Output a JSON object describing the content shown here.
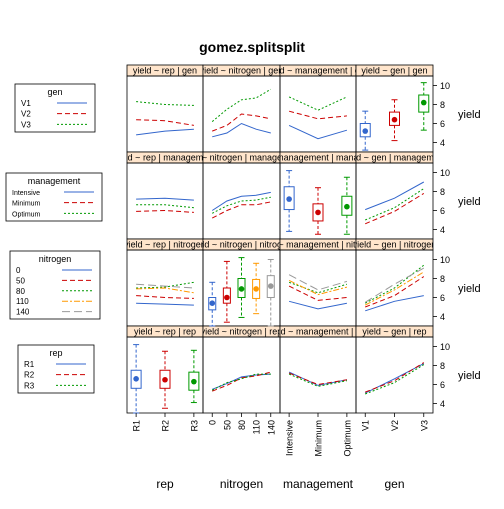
{
  "title": "gomez.splitsplit",
  "y_axis_label": "yield",
  "y_ticks": [
    "4",
    "6",
    "8",
    "10"
  ],
  "column_labels": [
    "rep",
    "nitrogen",
    "management",
    "gen"
  ],
  "row_factors": [
    "gen",
    "management",
    "nitrogen",
    "rep"
  ],
  "strip_titles": [
    [
      "yield ~ rep | gen",
      "yield ~ nitrogen | gen",
      "yield ~ management | gen",
      "yield ~ gen | gen"
    ],
    [
      "yield ~ rep | management",
      "yield ~ nitrogen | management",
      "yield ~ management | management",
      "yield ~ gen | management"
    ],
    [
      "yield ~ rep | nitrogen",
      "yield ~ nitrogen | nitrogen",
      "yield ~ management | nitrogen",
      "yield ~ gen | nitrogen"
    ],
    [
      "yield ~ rep | rep",
      "yield ~ nitrogen | rep",
      "yield ~ management | rep",
      "yield ~ gen | rep"
    ]
  ],
  "legends": [
    {
      "title": "gen",
      "items": [
        "V1",
        "V2",
        "V3"
      ]
    },
    {
      "title": "management",
      "items": [
        "Intensive",
        "Minimum",
        "Optimum"
      ]
    },
    {
      "title": "nitrogen",
      "items": [
        "0",
        "50",
        "80",
        "110",
        "140"
      ]
    },
    {
      "title": "rep",
      "items": [
        "R1",
        "R2",
        "R3"
      ]
    }
  ],
  "colors": {
    "series": [
      "#0080ff",
      "#ff00ff",
      "#006400",
      "#ff0000",
      "#ffa500"
    ],
    "lines": [
      "#3366cc",
      "#cc0000",
      "#009900",
      "#ff9900",
      "#999999"
    ],
    "strip": "#ffe5cc",
    "border": "#000000"
  },
  "chart_data": {
    "type": "line",
    "ylim": [
      3,
      11
    ],
    "x_levels": {
      "rep": [
        "R1",
        "R2",
        "R3"
      ],
      "nitrogen": [
        "0",
        "50",
        "80",
        "110",
        "140"
      ],
      "management": [
        "Intensive",
        "Minimum",
        "Optimum"
      ],
      "gen": [
        "V1",
        "V2",
        "V3"
      ]
    },
    "panels": [
      {
        "row": 0,
        "col": 0,
        "kind": "lines",
        "series": [
          [
            4.8,
            5.2,
            5.4
          ],
          [
            6.4,
            6.3,
            5.8
          ],
          [
            8.3,
            8.0,
            7.9
          ]
        ]
      },
      {
        "row": 0,
        "col": 1,
        "kind": "lines",
        "series": [
          [
            4.6,
            5.0,
            6.0,
            5.4,
            5.0
          ],
          [
            5.2,
            5.8,
            7.0,
            6.8,
            6.5
          ],
          [
            6.2,
            7.5,
            8.5,
            8.7,
            9.6
          ]
        ]
      },
      {
        "row": 0,
        "col": 2,
        "kind": "lines",
        "series": [
          [
            5.8,
            4.4,
            5.3
          ],
          [
            7.3,
            6.5,
            6.8
          ],
          [
            8.8,
            7.4,
            8.8
          ]
        ]
      },
      {
        "row": 0,
        "col": 3,
        "kind": "box",
        "boxes": [
          {
            "min": 3.2,
            "q1": 4.6,
            "med": 5.3,
            "q3": 6.0,
            "max": 7.3,
            "mean": 5.2
          },
          {
            "min": 4.2,
            "q1": 5.8,
            "med": 6.4,
            "q3": 7.2,
            "max": 8.5,
            "mean": 6.4
          },
          {
            "min": 5.3,
            "q1": 7.2,
            "med": 8.3,
            "q3": 9.0,
            "max": 10.3,
            "mean": 8.2
          }
        ]
      },
      {
        "row": 1,
        "col": 0,
        "kind": "lines",
        "series": [
          [
            7.2,
            7.3,
            7.1
          ],
          [
            5.9,
            6.0,
            5.8
          ],
          [
            6.6,
            6.6,
            6.3
          ]
        ]
      },
      {
        "row": 1,
        "col": 1,
        "kind": "lines",
        "series": [
          [
            6.0,
            7.0,
            7.5,
            7.6,
            7.9
          ],
          [
            5.2,
            6.0,
            6.6,
            6.6,
            6.9
          ],
          [
            5.7,
            6.5,
            7.0,
            7.1,
            7.4
          ]
        ]
      },
      {
        "row": 1,
        "col": 2,
        "kind": "box",
        "boxes": [
          {
            "min": 3.8,
            "q1": 6.1,
            "med": 7.4,
            "q3": 8.5,
            "max": 10.2,
            "mean": 7.2
          },
          {
            "min": 3.5,
            "q1": 4.9,
            "med": 5.9,
            "q3": 6.7,
            "max": 8.4,
            "mean": 5.8
          },
          {
            "min": 3.5,
            "q1": 5.5,
            "med": 6.4,
            "q3": 7.5,
            "max": 9.5,
            "mean": 6.4
          }
        ]
      },
      {
        "row": 1,
        "col": 3,
        "kind": "lines",
        "series": [
          [
            6.1,
            7.3,
            9.0
          ],
          [
            4.6,
            5.9,
            7.8
          ],
          [
            5.0,
            6.3,
            8.3
          ]
        ]
      },
      {
        "row": 2,
        "col": 0,
        "kind": "lines",
        "series": [
          [
            5.4,
            5.3,
            5.2
          ],
          [
            6.2,
            6.0,
            5.9
          ],
          [
            7.0,
            7.1,
            7.6
          ],
          [
            6.9,
            7.0,
            6.5
          ],
          [
            7.4,
            7.2,
            7.0
          ]
        ]
      },
      {
        "row": 2,
        "col": 1,
        "kind": "box",
        "boxes": [
          {
            "min": 3.0,
            "q1": 4.7,
            "med": 5.4,
            "q3": 6.0,
            "max": 7.6,
            "mean": 5.4
          },
          {
            "min": 3.4,
            "q1": 5.4,
            "med": 6.0,
            "q3": 7.0,
            "max": 9.8,
            "mean": 6.0
          },
          {
            "min": 3.9,
            "q1": 6.0,
            "med": 6.9,
            "q3": 8.0,
            "max": 10.2,
            "mean": 6.9
          },
          {
            "min": 4.3,
            "q1": 5.9,
            "med": 6.9,
            "q3": 7.9,
            "max": 9.6,
            "mean": 6.9
          },
          {
            "min": 3.0,
            "q1": 6.0,
            "med": 7.3,
            "q3": 8.3,
            "max": 10.0,
            "mean": 7.2
          }
        ]
      },
      {
        "row": 2,
        "col": 2,
        "kind": "lines",
        "series": [
          [
            5.6,
            4.8,
            5.4
          ],
          [
            7.2,
            5.7,
            6.0
          ],
          [
            7.6,
            6.5,
            7.4
          ],
          [
            7.8,
            6.3,
            7.1
          ],
          [
            8.4,
            6.8,
            7.7
          ]
        ]
      },
      {
        "row": 2,
        "col": 3,
        "kind": "lines",
        "series": [
          [
            4.6,
            5.6,
            6.2
          ],
          [
            5.0,
            6.2,
            8.2
          ],
          [
            5.4,
            7.0,
            9.4
          ],
          [
            5.2,
            6.8,
            8.7
          ],
          [
            5.5,
            7.4,
            9.1
          ]
        ]
      },
      {
        "row": 3,
        "col": 0,
        "kind": "box",
        "boxes": [
          {
            "min": 3.0,
            "q1": 5.6,
            "med": 6.6,
            "q3": 7.5,
            "max": 10.2,
            "mean": 6.6
          },
          {
            "min": 3.5,
            "q1": 5.6,
            "med": 6.5,
            "q3": 7.5,
            "max": 9.5,
            "mean": 6.5
          },
          {
            "min": 4.1,
            "q1": 5.4,
            "med": 6.3,
            "q3": 7.3,
            "max": 9.6,
            "mean": 6.3
          }
        ]
      },
      {
        "row": 3,
        "col": 1,
        "kind": "lines",
        "series": [
          [
            5.5,
            6.1,
            6.8,
            7.0,
            7.1
          ],
          [
            5.3,
            5.9,
            6.7,
            6.9,
            7.3
          ],
          [
            5.4,
            6.2,
            6.6,
            7.1,
            7.1
          ]
        ]
      },
      {
        "row": 3,
        "col": 2,
        "kind": "lines",
        "series": [
          [
            7.3,
            5.9,
            6.5
          ],
          [
            7.2,
            6.0,
            6.5
          ],
          [
            7.1,
            5.8,
            6.4
          ]
        ]
      },
      {
        "row": 3,
        "col": 3,
        "kind": "lines",
        "series": [
          [
            5.1,
            6.6,
            8.2
          ],
          [
            5.2,
            6.4,
            8.3
          ],
          [
            5.0,
            6.2,
            8.1
          ]
        ]
      }
    ]
  }
}
